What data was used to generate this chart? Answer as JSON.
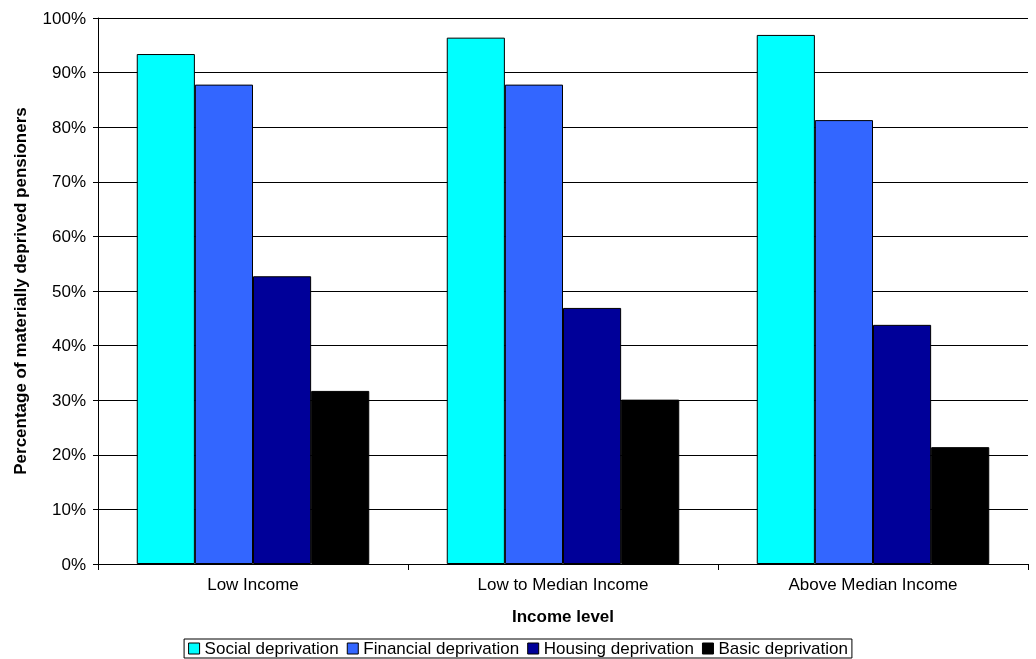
{
  "chart_data": {
    "type": "bar",
    "xlabel": "Income level",
    "ylabel": "Percentage of materially deprived pensioners",
    "categories": [
      "Low Income",
      "Low to Median Income",
      "Above Median Income"
    ],
    "series": [
      {
        "name": "Social deprivation",
        "color": "#00ffff",
        "values": [
          93.4,
          96.4,
          96.9
        ]
      },
      {
        "name": "Financial deprivation",
        "color": "#3366ff",
        "values": [
          87.8,
          87.8,
          81.3
        ]
      },
      {
        "name": "Housing deprivation",
        "color": "#000099",
        "values": [
          52.7,
          46.9,
          43.8
        ]
      },
      {
        "name": "Basic deprivation",
        "color": "#000000",
        "values": [
          31.7,
          30.1,
          21.4
        ]
      }
    ],
    "ylim": [
      0,
      100
    ],
    "yticks": [
      {
        "value": 0,
        "label": "0%"
      },
      {
        "value": 10,
        "label": "10%"
      },
      {
        "value": 20,
        "label": "20%"
      },
      {
        "value": 30,
        "label": "30%"
      },
      {
        "value": 40,
        "label": "40%"
      },
      {
        "value": 50,
        "label": "50%"
      },
      {
        "value": 60,
        "label": "60%"
      },
      {
        "value": 70,
        "label": "70%"
      },
      {
        "value": 80,
        "label": "80%"
      },
      {
        "value": 90,
        "label": "90%"
      },
      {
        "value": 100,
        "label": "100%"
      }
    ],
    "grid": "y",
    "legend": "bottom"
  }
}
